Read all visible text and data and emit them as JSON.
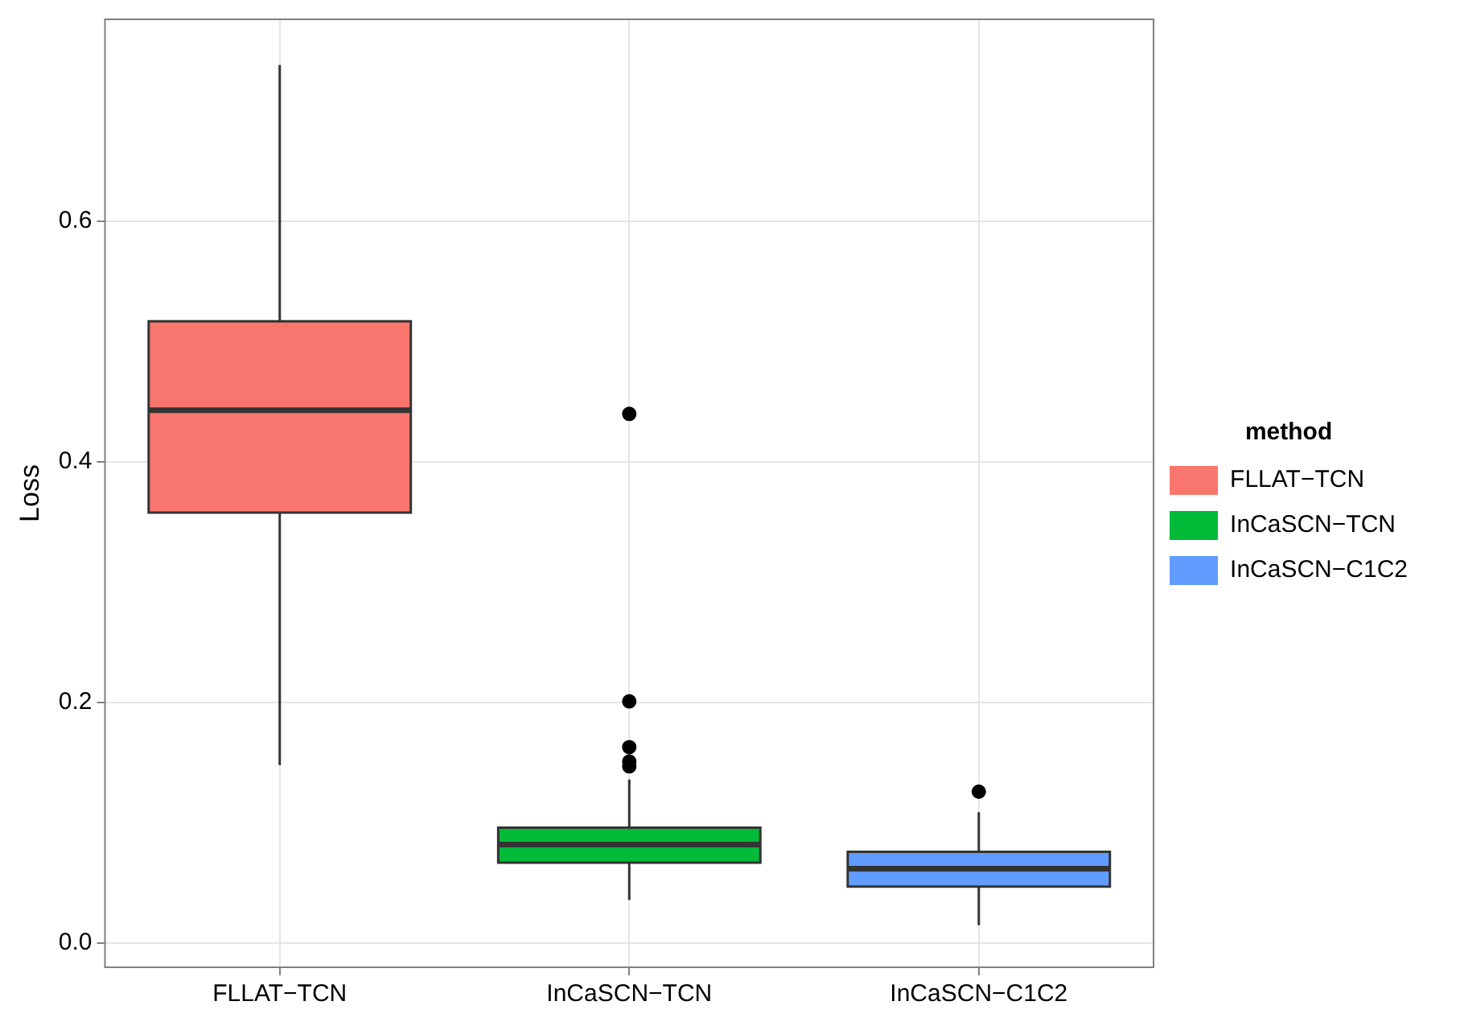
{
  "chart_data": {
    "type": "box",
    "ylabel": "Loss",
    "legend_title": "method",
    "legend": "right",
    "grid": true,
    "categories": [
      "FLLAT−TCN",
      "InCaSCN−TCN",
      "InCaSCN−C1C2"
    ],
    "ylim": [
      -0.02,
      0.768
    ],
    "yticks": [
      {
        "value": 0,
        "label": "0.0"
      },
      0.2,
      0.4,
      0.6
    ],
    "series": [
      {
        "name": "FLLAT−TCN",
        "color": "#f8766d",
        "boxes": [
          {
            "low": 0.148,
            "q1": 0.358,
            "median": 0.443,
            "q3": 0.517,
            "high": 0.73
          },
          null,
          null
        ]
      },
      {
        "name": "InCaSCN−TCN",
        "color": "#00ba38",
        "boxes": [
          null,
          {
            "low": 0.036,
            "q1": 0.067,
            "median": 0.082,
            "q3": 0.096,
            "high": 0.136,
            "outliers": [
              0.44,
              0.201,
              0.163,
              0.151,
              0.147
            ]
          },
          null
        ]
      },
      {
        "name": "InCaSCN−C1C2",
        "color": "#619cff",
        "boxes": [
          null,
          null,
          {
            "low": 0.015,
            "q1": 0.047,
            "median": 0.062,
            "q3": 0.076,
            "high": 0.109,
            "outliers": [
              0.126
            ]
          }
        ]
      }
    ]
  }
}
